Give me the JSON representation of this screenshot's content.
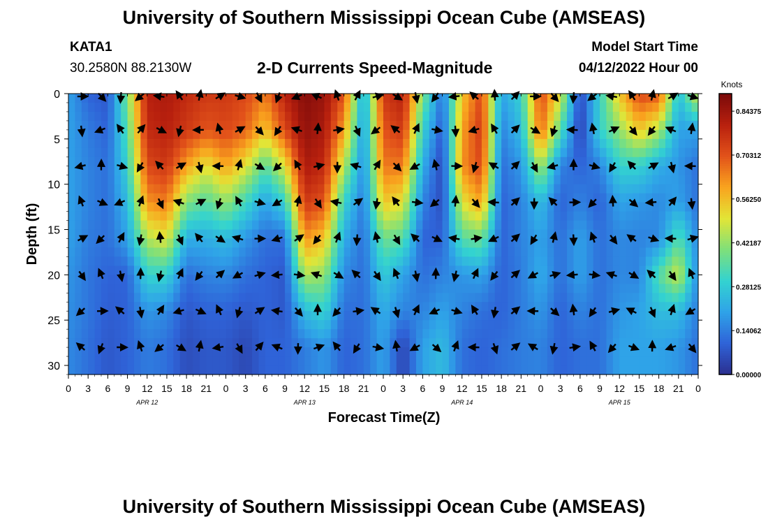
{
  "page": {
    "title_top": "University of Southern Mississippi Ocean Cube (AMSEAS)",
    "title_bottom": "University of Southern Mississippi Ocean Cube (AMSEAS)",
    "station": "KATA1",
    "location": "30.2580N  88.2130W",
    "subtitle": "2-D Currents Speed-Magnitude",
    "model_start_label": "Model Start Time",
    "model_start_value": "04/12/2022 Hour 00"
  },
  "colors": {
    "scale": [
      "#2b2f8f",
      "#2f63d8",
      "#2fa3e8",
      "#33d3d0",
      "#7fe07a",
      "#e3e536",
      "#f9a31e",
      "#e2521a",
      "#b8200e",
      "#7a0a0a"
    ]
  },
  "chart_data": {
    "type": "heatmap",
    "title": "2-D Currents Speed-Magnitude",
    "xlabel": "Forecast Time(Z)",
    "ylabel": "Depth (ft)",
    "x_ticks": [
      "0",
      "3",
      "6",
      "9",
      "12",
      "15",
      "18",
      "21",
      "0",
      "3",
      "6",
      "9",
      "12",
      "15",
      "18",
      "21",
      "0",
      "3",
      "6",
      "9",
      "12",
      "15",
      "18",
      "21",
      "0",
      "3",
      "6",
      "9",
      "12",
      "15",
      "18",
      "21",
      "0"
    ],
    "x_range_hours": [
      0,
      96
    ],
    "date_labels": [
      {
        "label": "APR 12",
        "hour": 12
      },
      {
        "label": "APR 13",
        "hour": 36
      },
      {
        "label": "APR 14",
        "hour": 60
      },
      {
        "label": "APR 15",
        "hour": 84
      }
    ],
    "y_ticks": [
      0,
      5,
      10,
      15,
      20,
      25,
      30
    ],
    "ylim": [
      0,
      31
    ],
    "colorbar": {
      "title": "Knots",
      "ticks": [
        "0.84375",
        "0.70312",
        "0.56250",
        "0.42187",
        "0.28125",
        "0.14062",
        "0.00000"
      ],
      "range": [
        0,
        0.9
      ]
    },
    "arrow_depths_ft": [
      0,
      4,
      8,
      12,
      16,
      20,
      24,
      28
    ],
    "arrow_hours": [
      2,
      5,
      8,
      11,
      14,
      17,
      20,
      23,
      26,
      29,
      32,
      35,
      38,
      41,
      44,
      47,
      50,
      53,
      56,
      59,
      62,
      65,
      68,
      71,
      74,
      77,
      80,
      83,
      86,
      89,
      92,
      95
    ],
    "speed_profiles": [
      {
        "hour": 0,
        "speeds": [
          0.2,
          0.2,
          0.2,
          0.2,
          0.2,
          0.18,
          0.17,
          0.16
        ]
      },
      {
        "hour": 3,
        "speeds": [
          0.1,
          0.14,
          0.15,
          0.15,
          0.14,
          0.13,
          0.13,
          0.12
        ]
      },
      {
        "hour": 6,
        "speeds": [
          0.08,
          0.1,
          0.12,
          0.12,
          0.12,
          0.1,
          0.09,
          0.08
        ]
      },
      {
        "hour": 9,
        "speeds": [
          0.4,
          0.35,
          0.3,
          0.25,
          0.2,
          0.1,
          0.1,
          0.1
        ]
      },
      {
        "hour": 12,
        "speeds": [
          0.8,
          0.78,
          0.72,
          0.62,
          0.45,
          0.3,
          0.18,
          0.14
        ]
      },
      {
        "hour": 15,
        "speeds": [
          0.82,
          0.8,
          0.75,
          0.65,
          0.5,
          0.3,
          0.16,
          0.12
        ]
      },
      {
        "hour": 18,
        "speeds": [
          0.78,
          0.75,
          0.6,
          0.4,
          0.22,
          0.12,
          0.08,
          0.06
        ]
      },
      {
        "hour": 21,
        "speeds": [
          0.75,
          0.7,
          0.5,
          0.35,
          0.22,
          0.15,
          0.1,
          0.08
        ]
      },
      {
        "hour": 24,
        "speeds": [
          0.75,
          0.72,
          0.6,
          0.42,
          0.25,
          0.16,
          0.1,
          0.08
        ]
      },
      {
        "hour": 27,
        "speeds": [
          0.72,
          0.68,
          0.5,
          0.32,
          0.18,
          0.12,
          0.08,
          0.05
        ]
      },
      {
        "hour": 30,
        "speeds": [
          0.65,
          0.55,
          0.35,
          0.2,
          0.12,
          0.1,
          0.1,
          0.1
        ]
      },
      {
        "hour": 33,
        "speeds": [
          0.8,
          0.72,
          0.5,
          0.3,
          0.12,
          0.08,
          0.08,
          0.1
        ]
      },
      {
        "hour": 36,
        "speeds": [
          0.88,
          0.86,
          0.82,
          0.75,
          0.62,
          0.45,
          0.25,
          0.14
        ]
      },
      {
        "hour": 39,
        "speeds": [
          0.85,
          0.82,
          0.78,
          0.7,
          0.55,
          0.42,
          0.3,
          0.18
        ]
      },
      {
        "hour": 42,
        "speeds": [
          0.7,
          0.6,
          0.45,
          0.3,
          0.22,
          0.16,
          0.12,
          0.1
        ]
      },
      {
        "hour": 45,
        "speeds": [
          0.2,
          0.18,
          0.16,
          0.14,
          0.12,
          0.12,
          0.12,
          0.12
        ]
      },
      {
        "hour": 48,
        "speeds": [
          0.75,
          0.7,
          0.65,
          0.55,
          0.38,
          0.28,
          0.22,
          0.2
        ]
      },
      {
        "hour": 51,
        "speeds": [
          0.8,
          0.75,
          0.65,
          0.5,
          0.35,
          0.2,
          0.15,
          0.04
        ]
      },
      {
        "hour": 54,
        "speeds": [
          0.4,
          0.3,
          0.22,
          0.15,
          0.1,
          0.12,
          0.15,
          0.2
        ]
      },
      {
        "hour": 57,
        "speeds": [
          0.12,
          0.08,
          0.05,
          0.06,
          0.1,
          0.15,
          0.2,
          0.25
        ]
      },
      {
        "hour": 60,
        "speeds": [
          0.55,
          0.6,
          0.62,
          0.5,
          0.35,
          0.18,
          0.15,
          0.12
        ]
      },
      {
        "hour": 63,
        "speeds": [
          0.72,
          0.75,
          0.72,
          0.6,
          0.38,
          0.2,
          0.12,
          0.1
        ]
      },
      {
        "hour": 66,
        "speeds": [
          0.2,
          0.15,
          0.12,
          0.1,
          0.1,
          0.1,
          0.1,
          0.12
        ]
      },
      {
        "hour": 69,
        "speeds": [
          0.3,
          0.25,
          0.18,
          0.15,
          0.15,
          0.14,
          0.14,
          0.14
        ]
      },
      {
        "hour": 72,
        "speeds": [
          0.72,
          0.68,
          0.45,
          0.25,
          0.2,
          0.22,
          0.18,
          0.15
        ]
      },
      {
        "hour": 75,
        "speeds": [
          0.5,
          0.35,
          0.15,
          0.1,
          0.12,
          0.12,
          0.1,
          0.1
        ]
      },
      {
        "hour": 78,
        "speeds": [
          0.05,
          0.03,
          0.1,
          0.15,
          0.2,
          0.2,
          0.15,
          0.12
        ]
      },
      {
        "hour": 81,
        "speeds": [
          0.3,
          0.3,
          0.15,
          0.1,
          0.12,
          0.12,
          0.12,
          0.12
        ]
      },
      {
        "hour": 84,
        "speeds": [
          0.55,
          0.42,
          0.3,
          0.2,
          0.16,
          0.16,
          0.18,
          0.2
        ]
      },
      {
        "hour": 87,
        "speeds": [
          0.72,
          0.55,
          0.3,
          0.18,
          0.15,
          0.15,
          0.2,
          0.2
        ]
      },
      {
        "hour": 90,
        "speeds": [
          0.7,
          0.45,
          0.22,
          0.16,
          0.16,
          0.35,
          0.25,
          0.2
        ]
      },
      {
        "hour": 93,
        "speeds": [
          0.25,
          0.2,
          0.18,
          0.2,
          0.35,
          0.48,
          0.25,
          0.18
        ]
      },
      {
        "hour": 96,
        "speeds": [
          0.5,
          0.2,
          0.12,
          0.12,
          0.15,
          0.15,
          0.14,
          0.12
        ]
      }
    ]
  }
}
